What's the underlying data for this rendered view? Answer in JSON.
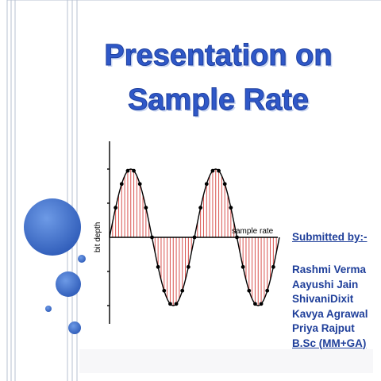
{
  "slide": {
    "title_line_1": "Presentation on",
    "title_line_2": "Sample Rate",
    "submitted_by_label": "Submitted by:-",
    "members": [
      "Rashmi Verma",
      "Aayushi Jain",
      "ShivaniDixit",
      "Kavya Agrawal",
      "Priya Rajput",
      "B.Sc (MM+GA)"
    ]
  },
  "chart_data": {
    "type": "line",
    "xlabel": "sample rate",
    "ylabel": "bit depth",
    "periods": 2,
    "samples_per_period": 14,
    "waveform": "sine",
    "sample_lines_color": "#d9534f",
    "curve_color": "#000000",
    "sample_point_color": "#000000"
  },
  "theme": {
    "title_color": "#2f58c8",
    "credits_color": "#1f3f9a",
    "accent_blue": "#3f6fc8",
    "border_color": "#b7c0d0"
  }
}
